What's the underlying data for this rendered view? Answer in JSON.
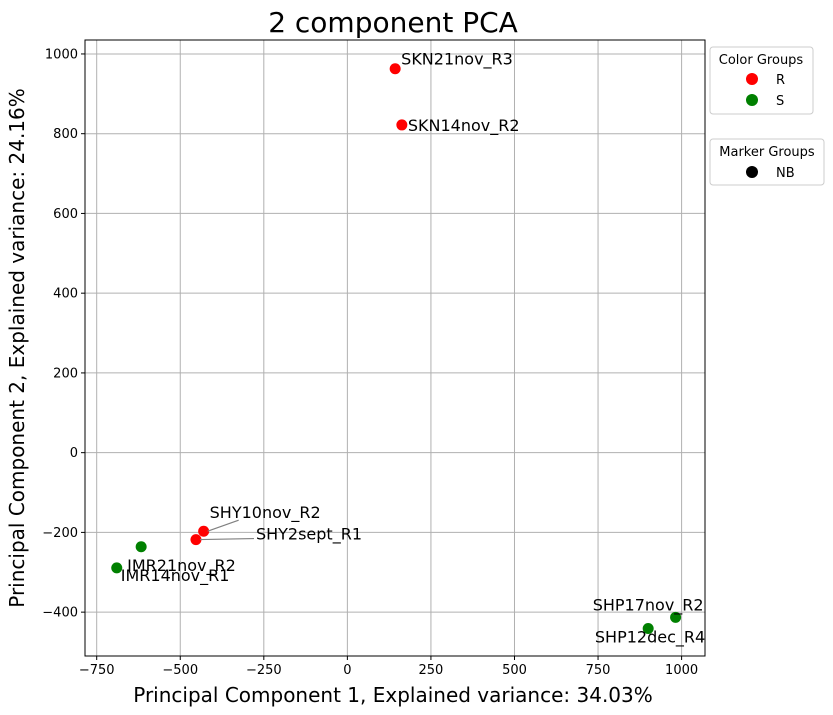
{
  "chart_data": {
    "type": "scatter",
    "title": "2 component PCA",
    "xlabel": "Principal Component 1, Explained variance: 34.03%",
    "ylabel": "Principal Component 2, Explained variance: 24.16%",
    "xlim": [
      -785,
      1070
    ],
    "ylim": [
      -510,
      1035
    ],
    "xticks": [
      -750,
      -500,
      -250,
      0,
      250,
      500,
      750,
      1000
    ],
    "yticks": [
      -400,
      -200,
      0,
      200,
      400,
      600,
      800,
      1000
    ],
    "grid": true,
    "points": [
      {
        "label": "SKN21nov_R3",
        "x": 143,
        "y": 963,
        "group": "R"
      },
      {
        "label": "SKN14nov_R2",
        "x": 163,
        "y": 822,
        "group": "R"
      },
      {
        "label": "SHY10nov_R2",
        "x": -430,
        "y": -197,
        "group": "R"
      },
      {
        "label": "SHY2sept_R1",
        "x": -453,
        "y": -218,
        "group": "R"
      },
      {
        "label": "IMR21nov_R2",
        "x": -617,
        "y": -236,
        "group": "S"
      },
      {
        "label": "IMR14nov_R1",
        "x": -690,
        "y": -289,
        "group": "S"
      },
      {
        "label": "SHP17nov_R2",
        "x": 982,
        "y": -413,
        "group": "S"
      },
      {
        "label": "SHP12dec_R4",
        "x": 900,
        "y": -441,
        "group": "S"
      }
    ],
    "color_groups": {
      "title": "Color Groups",
      "items": [
        {
          "name": "R",
          "color": "#ff0000"
        },
        {
          "name": "S",
          "color": "#008000"
        }
      ]
    },
    "marker_groups": {
      "title": "Marker Groups",
      "items": [
        {
          "name": "NB",
          "color": "#000000"
        }
      ]
    },
    "legend_position": "outside upper-right"
  }
}
